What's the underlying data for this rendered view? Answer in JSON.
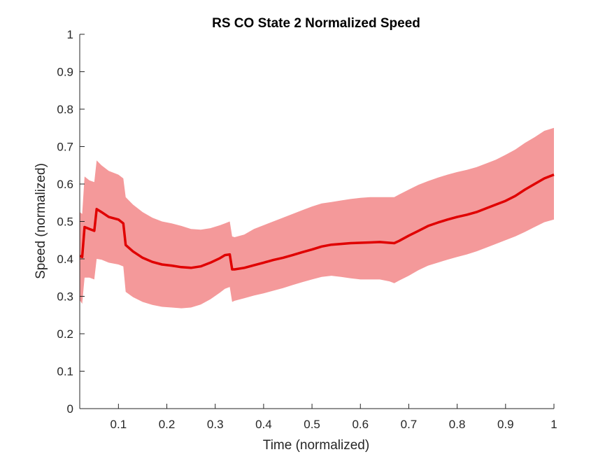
{
  "chart_data": {
    "type": "line",
    "title": "RS  CO State 2 Normalized Speed",
    "xlabel": "Time (normalized)",
    "ylabel": "Speed (normalized)",
    "xlim": [
      0.02,
      1.0
    ],
    "ylim": [
      0,
      1
    ],
    "xticks": [
      0.1,
      0.2,
      0.3,
      0.4,
      0.5,
      0.6,
      0.7,
      0.8,
      0.9,
      1
    ],
    "xtick_labels": [
      "0.1",
      "0.2",
      "0.3",
      "0.4",
      "0.5",
      "0.6",
      "0.7",
      "0.8",
      "0.9",
      "1"
    ],
    "yticks": [
      0,
      0.1,
      0.2,
      0.3,
      0.4,
      0.5,
      0.6,
      0.7,
      0.8,
      0.9,
      1
    ],
    "ytick_labels": [
      "0",
      "0.1",
      "0.2",
      "0.3",
      "0.4",
      "0.5",
      "0.6",
      "0.7",
      "0.8",
      "0.9",
      "1"
    ],
    "grid": false,
    "colors": {
      "line": "#e00000",
      "band": "#f4999a",
      "axis": "#262626"
    },
    "series": [
      {
        "x": [
          0.02,
          0.025,
          0.03,
          0.04,
          0.05,
          0.055,
          0.065,
          0.08,
          0.1,
          0.11,
          0.115,
          0.13,
          0.15,
          0.17,
          0.19,
          0.21,
          0.23,
          0.25,
          0.27,
          0.29,
          0.31,
          0.32,
          0.33,
          0.335,
          0.34,
          0.36,
          0.38,
          0.4,
          0.42,
          0.44,
          0.46,
          0.48,
          0.5,
          0.52,
          0.54,
          0.56,
          0.58,
          0.6,
          0.62,
          0.64,
          0.66,
          0.67,
          0.68,
          0.7,
          0.72,
          0.74,
          0.76,
          0.78,
          0.8,
          0.82,
          0.84,
          0.86,
          0.88,
          0.9,
          0.92,
          0.94,
          0.96,
          0.98,
          1.0
        ],
        "mean": [
          0.408,
          0.405,
          0.485,
          0.48,
          0.475,
          0.533,
          0.525,
          0.512,
          0.505,
          0.495,
          0.437,
          0.42,
          0.403,
          0.392,
          0.385,
          0.382,
          0.378,
          0.376,
          0.38,
          0.39,
          0.402,
          0.41,
          0.412,
          0.372,
          0.372,
          0.376,
          0.383,
          0.39,
          0.397,
          0.403,
          0.41,
          0.418,
          0.425,
          0.433,
          0.438,
          0.44,
          0.442,
          0.443,
          0.444,
          0.445,
          0.443,
          0.442,
          0.448,
          0.462,
          0.475,
          0.488,
          0.497,
          0.505,
          0.512,
          0.518,
          0.525,
          0.535,
          0.545,
          0.555,
          0.568,
          0.585,
          0.6,
          0.615,
          0.625
        ],
        "upper": [
          0.525,
          0.52,
          0.62,
          0.61,
          0.605,
          0.663,
          0.65,
          0.635,
          0.625,
          0.615,
          0.565,
          0.545,
          0.525,
          0.51,
          0.5,
          0.495,
          0.488,
          0.48,
          0.478,
          0.482,
          0.49,
          0.495,
          0.5,
          0.46,
          0.458,
          0.465,
          0.48,
          0.49,
          0.5,
          0.51,
          0.52,
          0.53,
          0.54,
          0.548,
          0.552,
          0.556,
          0.56,
          0.563,
          0.565,
          0.565,
          0.565,
          0.565,
          0.572,
          0.585,
          0.598,
          0.608,
          0.617,
          0.625,
          0.632,
          0.638,
          0.645,
          0.655,
          0.665,
          0.678,
          0.692,
          0.71,
          0.725,
          0.742,
          0.75
        ],
        "lower": [
          0.29,
          0.28,
          0.35,
          0.35,
          0.345,
          0.4,
          0.398,
          0.39,
          0.385,
          0.38,
          0.312,
          0.298,
          0.285,
          0.277,
          0.272,
          0.27,
          0.268,
          0.27,
          0.278,
          0.292,
          0.31,
          0.32,
          0.325,
          0.285,
          0.288,
          0.295,
          0.302,
          0.308,
          0.315,
          0.322,
          0.33,
          0.338,
          0.345,
          0.352,
          0.355,
          0.352,
          0.348,
          0.345,
          0.345,
          0.345,
          0.34,
          0.335,
          0.342,
          0.355,
          0.37,
          0.382,
          0.39,
          0.398,
          0.405,
          0.412,
          0.42,
          0.43,
          0.44,
          0.45,
          0.46,
          0.472,
          0.485,
          0.498,
          0.505
        ]
      }
    ]
  }
}
